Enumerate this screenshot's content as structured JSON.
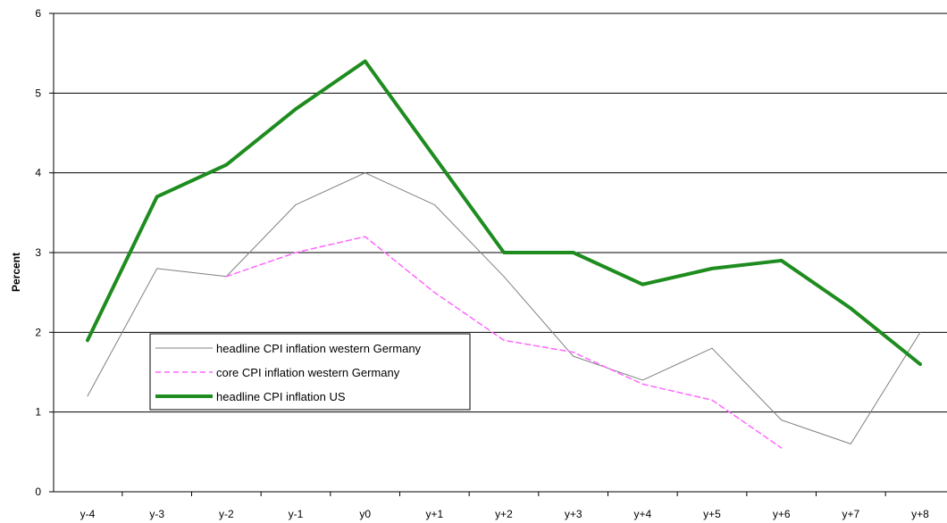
{
  "chart_data": {
    "type": "line",
    "title": "",
    "xlabel": "",
    "ylabel": "Percent",
    "ylim": [
      0,
      6
    ],
    "yticks": [
      0,
      1,
      2,
      3,
      4,
      5,
      6
    ],
    "grid": "horizontal major gridlines",
    "legend_position": "lower-left inside plot",
    "categories": [
      "y-4",
      "y-3",
      "y-2",
      "y-1",
      "y0",
      "y+1",
      "y+2",
      "y+3",
      "y+4",
      "y+5",
      "y+6",
      "y+7",
      "y+8"
    ],
    "series": [
      {
        "name": "headline CPI inflation western Germany",
        "color": "#808080",
        "style": "solid-thin",
        "values": [
          1.2,
          2.8,
          2.7,
          3.6,
          4.0,
          3.6,
          2.7,
          1.7,
          1.4,
          1.8,
          0.9,
          0.6,
          2.0
        ]
      },
      {
        "name": "core CPI inflation western Germany",
        "color": "#ff66ff",
        "style": "dashed",
        "values": [
          null,
          null,
          2.7,
          3.0,
          3.2,
          2.5,
          1.9,
          1.75,
          1.35,
          1.15,
          0.55,
          null,
          null
        ]
      },
      {
        "name": "headline CPI inflation US",
        "color": "#1e8c1e",
        "style": "solid-thick",
        "values": [
          1.9,
          3.7,
          4.1,
          4.8,
          5.4,
          4.2,
          3.0,
          3.0,
          2.6,
          2.8,
          2.9,
          2.3,
          1.6
        ]
      }
    ]
  }
}
